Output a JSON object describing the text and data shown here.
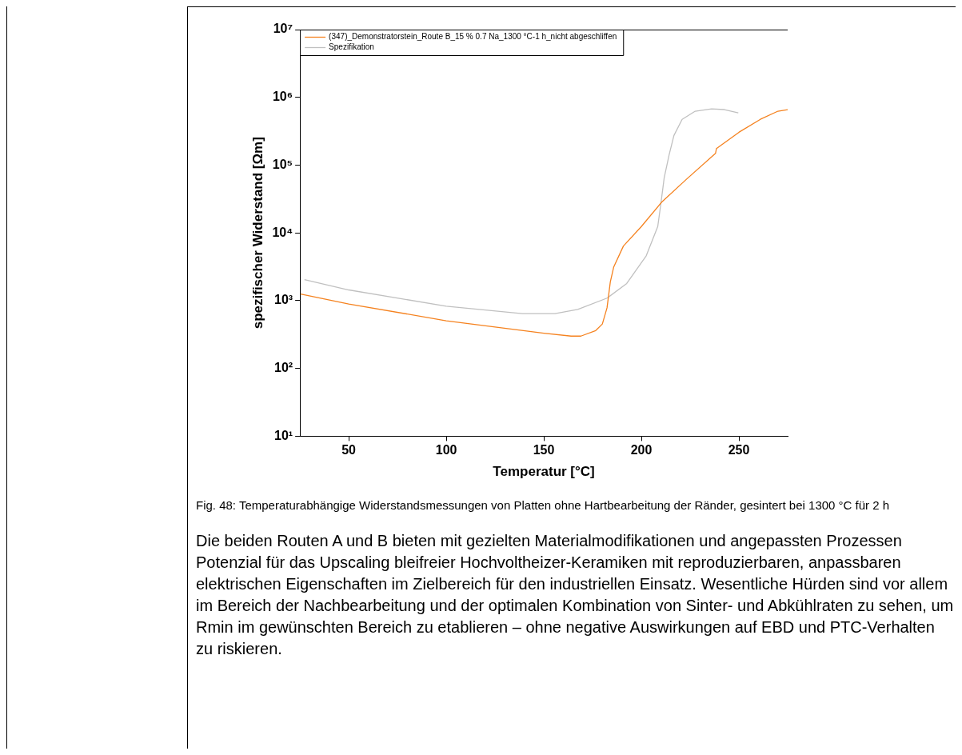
{
  "chart_data": {
    "type": "line",
    "xlabel": "Temperatur [°C]",
    "ylabel": "spezifischer Widerstand [Ωm]",
    "xlim": [
      25,
      275
    ],
    "xticks": [
      50,
      100,
      150,
      200,
      250
    ],
    "ylim": [
      10,
      10000000
    ],
    "yticks": [
      {
        "value": 10,
        "label": "10¹"
      },
      {
        "value": 100,
        "label": "10²"
      },
      {
        "value": 1000,
        "label": "10³"
      },
      {
        "value": 10000,
        "label": "10⁴"
      },
      {
        "value": 100000,
        "label": "10⁵"
      },
      {
        "value": 1000000,
        "label": "10⁶"
      },
      {
        "value": 10000000,
        "label": "10⁷"
      }
    ],
    "log": "y",
    "grid": false,
    "legend": "top left",
    "marker": "none",
    "line_style": "solid",
    "series": [
      {
        "name": "(347)_Demonstratorstein_Route B_15 % 0.7 Na_1300 °C-1 h_nicht abgeschliffen",
        "color": "#f5821f",
        "x": [
          25.3,
          50,
          100,
          150,
          164,
          169,
          176.6,
          180,
          182.4,
          184.1,
          185.8,
          190.8,
          200,
          210.4,
          223,
          238,
          238.5,
          250,
          261,
          270,
          275
        ],
        "values": [
          1250,
          895,
          505,
          331,
          300,
          300,
          362,
          452,
          783,
          1900,
          3120,
          6400,
          12400,
          28400,
          61500,
          149000,
          176000,
          305000,
          474000,
          625000,
          660000
        ]
      },
      {
        "name": "Spezifikation",
        "color": "#c0c0c0",
        "x": [
          27.3,
          50,
          100,
          139,
          155.7,
          167.4,
          182.4,
          192.5,
          202.5,
          208.4,
          210,
          211.7,
          214.2,
          216.7,
          220.9,
          227.6,
          236,
          242.6,
          249.7
        ],
        "values": [
          2050,
          1440,
          828,
          643,
          643,
          743,
          1090,
          1795,
          4590,
          12400,
          26900,
          65000,
          141000,
          274000,
          474000,
          625000,
          676000,
          660000,
          592000
        ]
      }
    ],
    "annotations": [
      "Fig. 48: Temperaturabhängige Widerstandsmessungen von Platten ohne Hartbearbeitung der Ränder, gesintert bei 1300 °C für 2 h",
      "Die beiden Routen A und B bieten mit gezielten Materialmodifikationen und angepassten Prozessen Potenzial für das Upscaling bleifreier Hochvoltheizer-Keramiken mit reproduzierbaren, anpassbaren elektrischen Eigenschaften im Zielbereich für den industriellen Einsatz. Wesentliche Hürden sind vor allem im Bereich der Nachbearbeitung und der optimalen Kombination von Sinter- und Abkühlraten zu sehen, um Rmin im gewünschten Bereich zu etablieren – ohne negative Auswirkungen auf EBD und PTC-Verhalten zu riskieren."
    ]
  }
}
